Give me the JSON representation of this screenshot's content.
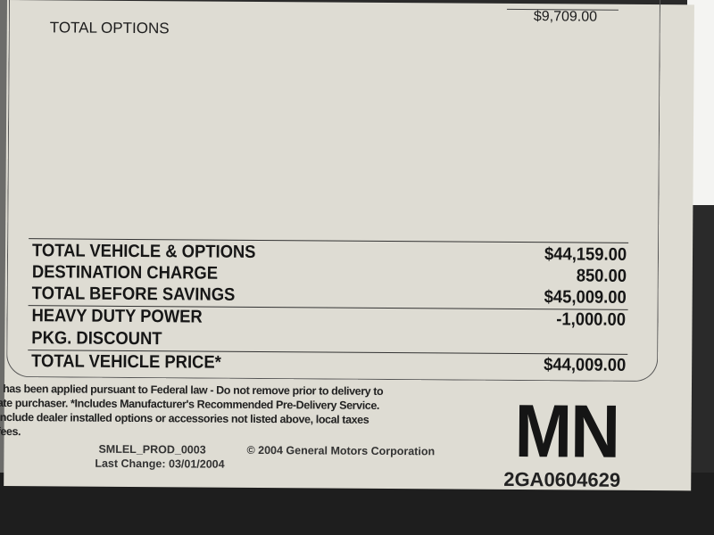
{
  "options": {
    "total_label": "TOTAL OPTIONS",
    "total_value": "$9,709.00"
  },
  "summary": [
    {
      "label": "TOTAL VEHICLE & OPTIONS",
      "value": "$44,159.00"
    },
    {
      "label": "DESTINATION CHARGE",
      "value": "850.00"
    },
    {
      "label": "TOTAL BEFORE SAVINGS",
      "value": "$45,009.00"
    },
    {
      "label": "HEAVY DUTY POWER",
      "value": "-1,000.00"
    },
    {
      "label": "PKG. DISCOUNT",
      "value": ""
    },
    {
      "label": "TOTAL VEHICLE PRICE*",
      "value": "$44,009.00"
    }
  ],
  "footer": {
    "lines": [
      "l has been applied pursuant to Federal law - Do not remove prior to delivery to",
      "ate purchaser. *Includes Manufacturer's Recommended Pre-Delivery Service.",
      " include dealer installed options or accessories not listed above, local taxes",
      " fees."
    ],
    "form_id": "SMLEL_PROD_0003",
    "copyright": "© 2004 General Motors Corporation",
    "last_change": "Last Change: 03/01/2004"
  },
  "plant_code": "MN",
  "vin_code": "2GA0604629"
}
